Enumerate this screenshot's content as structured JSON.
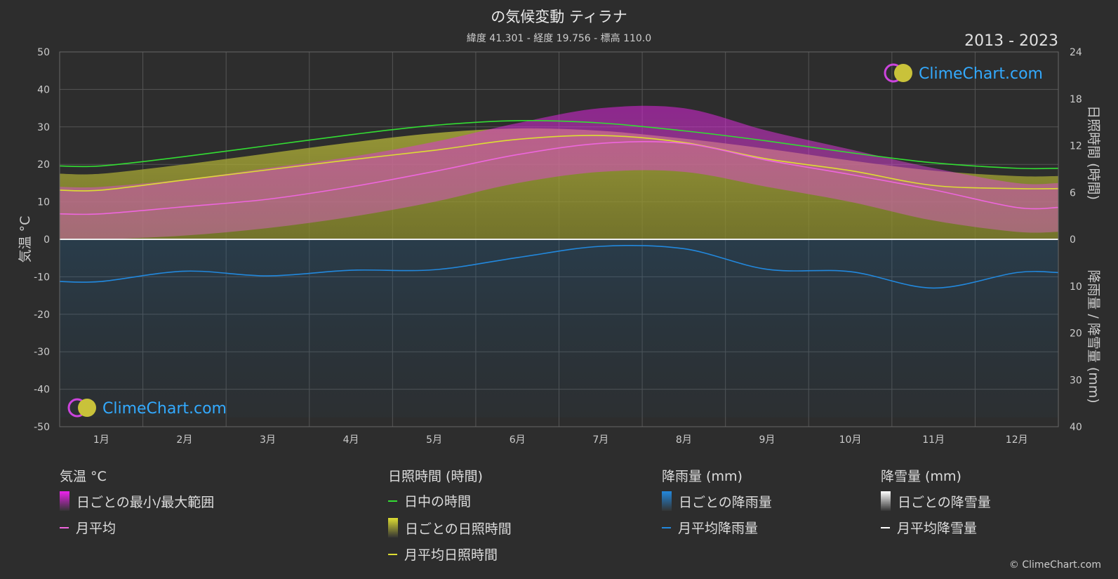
{
  "header": {
    "title": "の気候変動 ティラナ",
    "subtitle": "緯度 41.301 - 経度 19.756 - 標高 110.0",
    "year_range": "2013 - 2023"
  },
  "watermark": "ClimeChart.com",
  "credit": "© ClimeChart.com",
  "colors": {
    "background": "#2d2d2d",
    "daylight": "#33dd33",
    "sunshine": "#dddd33",
    "temp_avg": "#ee66dd",
    "temp_range": "#ee22ee",
    "rain": "#2288dd",
    "snow": "#ffffff",
    "watermark": "#33aaff"
  },
  "chart_data": {
    "type": "line",
    "categories": [
      "1月",
      "2月",
      "3月",
      "4月",
      "5月",
      "6月",
      "7月",
      "8月",
      "9月",
      "10月",
      "11月",
      "12月"
    ],
    "y_left": {
      "label": "気温 °C",
      "ylim": [
        -50,
        50
      ],
      "ticks": [
        50,
        40,
        30,
        20,
        10,
        0,
        -10,
        -20,
        -30,
        -40,
        -50
      ]
    },
    "y_right_top": {
      "label": "日照時間 (時間)",
      "ylim": [
        0,
        24
      ],
      "ticks": [
        24,
        18,
        12,
        6,
        0
      ]
    },
    "y_right_bottom": {
      "label": "降雨量 / 降雪量 (mm)",
      "ylim": [
        0,
        40
      ],
      "ticks": [
        0,
        10,
        20,
        30,
        40
      ]
    },
    "grid": true,
    "series": [
      {
        "name": "日中の時間",
        "axis": "sunshine_hours",
        "values": [
          9.4,
          10.6,
          12.0,
          13.4,
          14.6,
          15.2,
          14.9,
          13.9,
          12.6,
          11.1,
          9.8,
          9.1
        ]
      },
      {
        "name": "月平均日照時間",
        "axis": "sunshine_hours",
        "values": [
          6.3,
          7.6,
          8.9,
          10.2,
          11.4,
          12.8,
          13.3,
          12.4,
          10.3,
          8.8,
          6.9,
          6.5
        ]
      },
      {
        "name": "月平均",
        "axis": "temperature_c",
        "values": [
          6.8,
          8.7,
          10.7,
          14.0,
          18.1,
          22.6,
          25.6,
          25.6,
          21.1,
          17.3,
          13.2,
          8.5
        ]
      },
      {
        "name": "月平均降雨量",
        "axis": "precipitation_mm",
        "values": [
          9.0,
          6.8,
          7.8,
          6.6,
          6.5,
          3.9,
          1.5,
          2.0,
          6.4,
          6.9,
          10.4,
          7.1
        ]
      },
      {
        "name": "月平均降雪量",
        "axis": "precipitation_mm",
        "values": [
          0,
          0,
          0,
          0,
          0,
          0,
          0,
          0,
          0,
          0,
          0,
          0
        ]
      }
    ],
    "daily_range_band": {
      "name": "日ごとの最小/最大範囲",
      "min": [
        0,
        1,
        3,
        6,
        10,
        15,
        18,
        18,
        14,
        10,
        5,
        2
      ],
      "max": [
        14,
        16,
        19,
        22,
        26,
        31,
        35,
        35,
        29,
        24,
        19,
        15
      ]
    },
    "legend": {
      "groups": [
        {
          "title": "気温 °C",
          "items": [
            {
              "label": "日ごとの最小/最大範囲",
              "swatch": "block",
              "color": "#ee22ee"
            },
            {
              "label": "月平均",
              "swatch": "line",
              "color": "#ee66dd"
            }
          ]
        },
        {
          "title": "日照時間 (時間)",
          "items": [
            {
              "label": "日中の時間",
              "swatch": "line",
              "color": "#33dd33"
            },
            {
              "label": "日ごとの日照時間",
              "swatch": "block",
              "color": "#dddd33"
            },
            {
              "label": "月平均日照時間",
              "swatch": "line",
              "color": "#dddd33"
            }
          ]
        },
        {
          "title": "降雨量 (mm)",
          "items": [
            {
              "label": "日ごとの降雨量",
              "swatch": "block",
              "color": "#2288dd"
            },
            {
              "label": "月平均降雨量",
              "swatch": "line",
              "color": "#2288dd"
            }
          ]
        },
        {
          "title": "降雪量 (mm)",
          "items": [
            {
              "label": "日ごとの降雪量",
              "swatch": "block",
              "color": "#ffffff"
            },
            {
              "label": "月平均降雪量",
              "swatch": "line",
              "color": "#ffffff"
            }
          ]
        }
      ]
    }
  }
}
